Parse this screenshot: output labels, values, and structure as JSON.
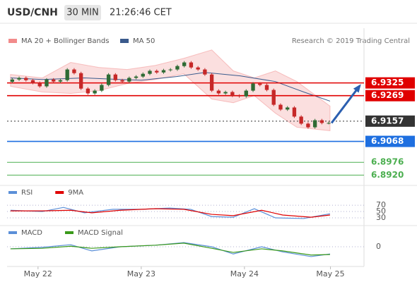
{
  "chart_data": {
    "type": "candlestick",
    "title": "USD/CNH",
    "timeframe": "30 MIN",
    "time": "21:26:46 CET",
    "source": "Research © 2019 Trading Central",
    "xlim": [
      -7.2,
      75.8
    ],
    "xticks": [
      {
        "value": 0,
        "label": "May 22"
      },
      {
        "value": 24,
        "label": "May 23"
      },
      {
        "value": 48,
        "label": "May 24"
      },
      {
        "value": 68,
        "label": "May 25"
      }
    ],
    "ylim": [
      6.889,
      6.955
    ],
    "up_color": "#2e6b34",
    "down_color": "#c62828",
    "x": [
      -6,
      -4.4,
      -2.8,
      -1.2,
      0.4,
      2,
      3.6,
      5.2,
      6.8,
      8.4,
      10,
      11.6,
      13.2,
      14.8,
      16.4,
      18,
      19.6,
      21.2,
      22.8,
      24.4,
      26,
      27.6,
      29.2,
      30.8,
      32.4,
      34,
      35.6,
      37.2,
      38.8,
      40.4,
      42,
      43.6,
      45.2,
      46.8,
      48.4,
      50,
      51.6,
      53.2,
      54.8,
      56.4,
      58,
      59.6,
      61.2,
      62.8,
      64.4,
      66,
      67.6
    ],
    "open": [
      6.933,
      6.934,
      6.9347,
      6.9337,
      6.9325,
      6.931,
      6.934,
      6.9331,
      6.9337,
      6.9384,
      6.9368,
      6.93,
      6.9279,
      6.9291,
      6.9316,
      6.9362,
      6.9337,
      6.9331,
      6.9347,
      6.9353,
      6.9365,
      6.9378,
      6.9371,
      6.9381,
      6.9384,
      6.9399,
      6.9415,
      6.9393,
      6.9384,
      6.9362,
      6.9291,
      6.9279,
      6.9285,
      6.9269,
      6.9266,
      6.9291,
      6.9322,
      6.9316,
      6.9294,
      6.9229,
      6.9208,
      6.9217,
      6.9177,
      6.9146,
      6.913,
      6.9161,
      6.9149
    ],
    "high": [
      6.9346,
      6.9353,
      6.9353,
      6.9343,
      6.9331,
      6.9346,
      6.9346,
      6.9343,
      6.939,
      6.939,
      6.9374,
      6.9306,
      6.9297,
      6.9322,
      6.9368,
      6.9368,
      6.9343,
      6.9353,
      6.9359,
      6.9371,
      6.9384,
      6.9384,
      6.9387,
      6.939,
      6.9405,
      6.9421,
      6.9421,
      6.9399,
      6.939,
      6.9368,
      6.9297,
      6.9291,
      6.9291,
      6.9275,
      6.9297,
      6.9328,
      6.9328,
      6.9322,
      6.93,
      6.9235,
      6.9223,
      6.9223,
      6.9183,
      6.9152,
      6.9167,
      6.9167,
      6.9155
    ],
    "low": [
      6.9324,
      6.9334,
      6.9331,
      6.9319,
      6.9304,
      6.9304,
      6.9325,
      6.9325,
      6.9331,
      6.9362,
      6.9294,
      6.9273,
      6.9273,
      6.9285,
      6.931,
      6.9331,
      6.9325,
      6.9325,
      6.9341,
      6.9347,
      6.9359,
      6.9365,
      6.9365,
      6.9375,
      6.9378,
      6.9393,
      6.9387,
      6.9378,
      6.9356,
      6.9285,
      6.9273,
      6.9273,
      6.9263,
      6.926,
      6.926,
      6.9285,
      6.931,
      6.9288,
      6.9223,
      6.9202,
      6.9202,
      6.9171,
      6.914,
      6.9124,
      6.9124,
      6.9143,
      6.9143
    ],
    "close": [
      6.934,
      6.9347,
      6.9337,
      6.9325,
      6.931,
      6.934,
      6.9331,
      6.9337,
      6.9384,
      6.9368,
      6.93,
      6.9279,
      6.9291,
      6.9316,
      6.9362,
      6.9337,
      6.9331,
      6.9347,
      6.9353,
      6.9365,
      6.9378,
      6.9371,
      6.9381,
      6.9384,
      6.9399,
      6.9415,
      6.9393,
      6.9384,
      6.9362,
      6.9291,
      6.9279,
      6.9285,
      6.9269,
      6.9266,
      6.9291,
      6.9322,
      6.9316,
      6.9294,
      6.9229,
      6.9208,
      6.9217,
      6.9177,
      6.9146,
      6.913,
      6.9161,
      6.9149,
      6.9149
    ],
    "bands": {
      "name": "MA 20 + Bollinger Bands",
      "color": "#f28b8b",
      "x": [
        -6.4,
        1,
        7.6,
        14.1,
        20.7,
        27.3,
        33.9,
        40.4,
        45.4,
        50.3,
        55.2,
        60.2,
        67.9
      ],
      "upper": [
        6.9362,
        6.9347,
        6.9415,
        6.9393,
        6.9384,
        6.9402,
        6.9433,
        6.947,
        6.9378,
        6.9347,
        6.9378,
        6.9331,
        6.9223
      ],
      "lower": [
        6.931,
        6.9285,
        6.9279,
        6.9291,
        6.9322,
        6.934,
        6.9365,
        6.9254,
        6.9238,
        6.9269,
        6.9192,
        6.913,
        6.9115
      ]
    },
    "ma": {
      "name": "MA 50",
      "color": "#3a5a8c",
      "x": [
        -6.4,
        1,
        10.8,
        19.1,
        24,
        32.2,
        38.8,
        47,
        55.2,
        61.8,
        67.9
      ],
      "values": [
        6.9347,
        6.934,
        6.9347,
        6.934,
        6.9337,
        6.9353,
        6.9371,
        6.9356,
        6.9331,
        6.9285,
        6.9245
      ]
    },
    "levels": [
      {
        "value": 6.9325,
        "label": "6.9325",
        "color": "#e00000",
        "style": "solid",
        "boxed": true
      },
      {
        "value": 6.9269,
        "label": "6.9269",
        "color": "#e00000",
        "style": "solid",
        "boxed": true
      },
      {
        "value": 6.9157,
        "label": "6.9157",
        "color": "#333333",
        "style": "dotted",
        "boxed": true
      },
      {
        "value": 6.9068,
        "label": "6.9068",
        "color": "#1e6fe0",
        "style": "solid",
        "boxed": true
      },
      {
        "value": 6.8976,
        "label": "6.8976",
        "color": "#4caf50",
        "style": "solid",
        "boxed": false
      },
      {
        "value": 6.892,
        "label": "6.8920",
        "color": "#4caf50",
        "style": "solid",
        "boxed": false
      }
    ],
    "indicators": [
      {
        "type": "line",
        "ylim": [
          10,
          88
        ],
        "yticks": [
          70,
          50,
          30
        ],
        "series": [
          {
            "name": "RSI",
            "color": "#5b8fd8",
            "x": [
              -6.4,
              1,
              5.9,
              10.8,
              17.4,
              24,
              30.6,
              35.5,
              40.4,
              45.4,
              50.3,
              55.2,
              61.8,
              67.9
            ],
            "values": [
              54,
              50,
              63,
              46,
              57,
              57,
              61,
              57,
              34,
              32,
              59,
              30,
              28,
              43
            ]
          },
          {
            "name": "9MA",
            "color": "#e00000",
            "x": [
              -6.4,
              1,
              7.6,
              12.5,
              19.1,
              27.3,
              33.9,
              40.4,
              45.4,
              52,
              56.9,
              63.5,
              67.9
            ],
            "values": [
              52,
              52,
              54,
              46,
              54,
              59,
              57,
              41,
              37,
              54,
              39,
              32,
              39
            ]
          }
        ]
      },
      {
        "type": "line",
        "ylim": [
          -0.003,
          0.003
        ],
        "yticks": [
          0
        ],
        "series": [
          {
            "name": "MACD",
            "color": "#5b8fd8",
            "x": [
              -6.4,
              1,
              7.6,
              12.5,
              19.1,
              27.3,
              33.9,
              40.4,
              45.4,
              52,
              56.9,
              63.5,
              67.9
            ],
            "values": [
              -0.0004,
              -0.0001,
              0.0004,
              -0.0008,
              0,
              0.0003,
              0.0008,
              0,
              -0.0014,
              0,
              -0.001,
              -0.0019,
              -0.0014
            ]
          },
          {
            "name": "MACD Signal",
            "color": "#3a9a1a",
            "x": [
              -6.4,
              1,
              7.6,
              12.5,
              19.1,
              27.3,
              33.9,
              40.4,
              45.4,
              52,
              56.9,
              63.5,
              67.9
            ],
            "values": [
              -0.0004,
              -0.0003,
              0.0001,
              -0.0003,
              0,
              0.0003,
              0.0007,
              -0.0003,
              -0.0011,
              -0.0004,
              -0.0008,
              -0.0016,
              -0.0015
            ]
          }
        ]
      }
    ]
  }
}
